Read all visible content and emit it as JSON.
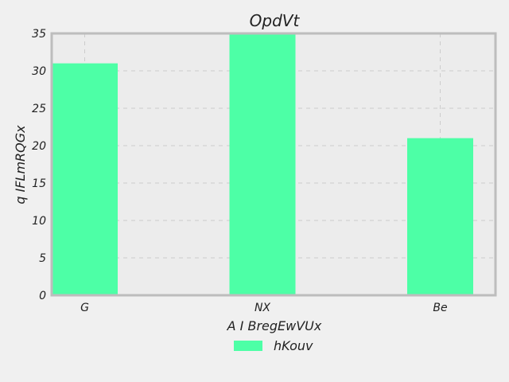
{
  "chart_data": {
    "type": "bar",
    "title": "OpdVt",
    "xlabel": "A I BregEwVUx",
    "ylabel": "q IFLmRQGx",
    "categories": [
      "G",
      "NX",
      "Be"
    ],
    "series": [
      {
        "name": "hKouv",
        "values": [
          31,
          35,
          21
        ]
      }
    ],
    "ylim": [
      0,
      35
    ],
    "yticks": [
      0,
      5,
      10,
      15,
      20,
      25,
      30,
      35
    ],
    "grid": true,
    "legend_position": "bottom-center",
    "colors": {
      "bar": "#4dffa6",
      "plot_background": "#ececec",
      "figure_background": "#f0f0f0",
      "frame": "#bdbdbd",
      "grid": "#cccccc"
    }
  }
}
